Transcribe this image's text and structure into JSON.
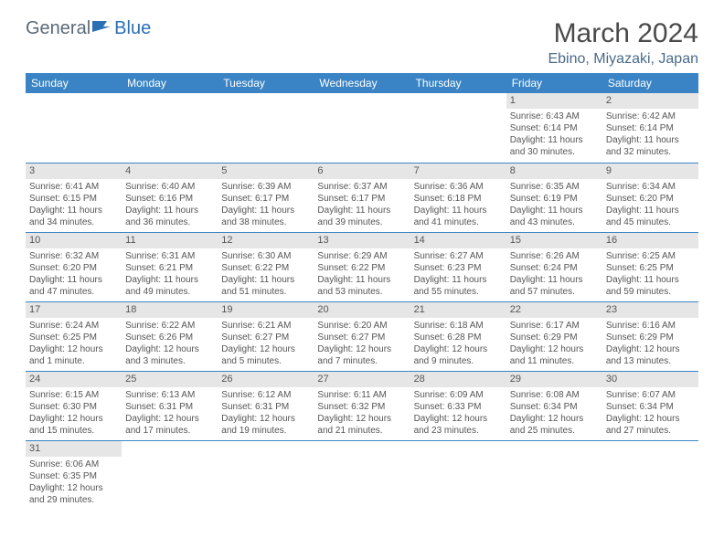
{
  "logo": {
    "part1": "General",
    "part2": "Blue"
  },
  "title": "March 2024",
  "location": "Ebino, Miyazaki, Japan",
  "colors": {
    "header_bg": "#3a84c5",
    "header_fg": "#ffffff",
    "daynum_bg": "#e6e6e6",
    "text": "#555555",
    "border": "#3a84c5",
    "logo_gray": "#5a6a78",
    "logo_blue": "#2b6fb5",
    "title_color": "#4a4a4a",
    "location_color": "#4a6a8a"
  },
  "weekdays": [
    "Sunday",
    "Monday",
    "Tuesday",
    "Wednesday",
    "Thursday",
    "Friday",
    "Saturday"
  ],
  "weeks": [
    [
      null,
      null,
      null,
      null,
      null,
      {
        "n": "1",
        "sunrise": "6:43 AM",
        "sunset": "6:14 PM",
        "daylight": "11 hours and 30 minutes."
      },
      {
        "n": "2",
        "sunrise": "6:42 AM",
        "sunset": "6:14 PM",
        "daylight": "11 hours and 32 minutes."
      }
    ],
    [
      {
        "n": "3",
        "sunrise": "6:41 AM",
        "sunset": "6:15 PM",
        "daylight": "11 hours and 34 minutes."
      },
      {
        "n": "4",
        "sunrise": "6:40 AM",
        "sunset": "6:16 PM",
        "daylight": "11 hours and 36 minutes."
      },
      {
        "n": "5",
        "sunrise": "6:39 AM",
        "sunset": "6:17 PM",
        "daylight": "11 hours and 38 minutes."
      },
      {
        "n": "6",
        "sunrise": "6:37 AM",
        "sunset": "6:17 PM",
        "daylight": "11 hours and 39 minutes."
      },
      {
        "n": "7",
        "sunrise": "6:36 AM",
        "sunset": "6:18 PM",
        "daylight": "11 hours and 41 minutes."
      },
      {
        "n": "8",
        "sunrise": "6:35 AM",
        "sunset": "6:19 PM",
        "daylight": "11 hours and 43 minutes."
      },
      {
        "n": "9",
        "sunrise": "6:34 AM",
        "sunset": "6:20 PM",
        "daylight": "11 hours and 45 minutes."
      }
    ],
    [
      {
        "n": "10",
        "sunrise": "6:32 AM",
        "sunset": "6:20 PM",
        "daylight": "11 hours and 47 minutes."
      },
      {
        "n": "11",
        "sunrise": "6:31 AM",
        "sunset": "6:21 PM",
        "daylight": "11 hours and 49 minutes."
      },
      {
        "n": "12",
        "sunrise": "6:30 AM",
        "sunset": "6:22 PM",
        "daylight": "11 hours and 51 minutes."
      },
      {
        "n": "13",
        "sunrise": "6:29 AM",
        "sunset": "6:22 PM",
        "daylight": "11 hours and 53 minutes."
      },
      {
        "n": "14",
        "sunrise": "6:27 AM",
        "sunset": "6:23 PM",
        "daylight": "11 hours and 55 minutes."
      },
      {
        "n": "15",
        "sunrise": "6:26 AM",
        "sunset": "6:24 PM",
        "daylight": "11 hours and 57 minutes."
      },
      {
        "n": "16",
        "sunrise": "6:25 AM",
        "sunset": "6:25 PM",
        "daylight": "11 hours and 59 minutes."
      }
    ],
    [
      {
        "n": "17",
        "sunrise": "6:24 AM",
        "sunset": "6:25 PM",
        "daylight": "12 hours and 1 minute."
      },
      {
        "n": "18",
        "sunrise": "6:22 AM",
        "sunset": "6:26 PM",
        "daylight": "12 hours and 3 minutes."
      },
      {
        "n": "19",
        "sunrise": "6:21 AM",
        "sunset": "6:27 PM",
        "daylight": "12 hours and 5 minutes."
      },
      {
        "n": "20",
        "sunrise": "6:20 AM",
        "sunset": "6:27 PM",
        "daylight": "12 hours and 7 minutes."
      },
      {
        "n": "21",
        "sunrise": "6:18 AM",
        "sunset": "6:28 PM",
        "daylight": "12 hours and 9 minutes."
      },
      {
        "n": "22",
        "sunrise": "6:17 AM",
        "sunset": "6:29 PM",
        "daylight": "12 hours and 11 minutes."
      },
      {
        "n": "23",
        "sunrise": "6:16 AM",
        "sunset": "6:29 PM",
        "daylight": "12 hours and 13 minutes."
      }
    ],
    [
      {
        "n": "24",
        "sunrise": "6:15 AM",
        "sunset": "6:30 PM",
        "daylight": "12 hours and 15 minutes."
      },
      {
        "n": "25",
        "sunrise": "6:13 AM",
        "sunset": "6:31 PM",
        "daylight": "12 hours and 17 minutes."
      },
      {
        "n": "26",
        "sunrise": "6:12 AM",
        "sunset": "6:31 PM",
        "daylight": "12 hours and 19 minutes."
      },
      {
        "n": "27",
        "sunrise": "6:11 AM",
        "sunset": "6:32 PM",
        "daylight": "12 hours and 21 minutes."
      },
      {
        "n": "28",
        "sunrise": "6:09 AM",
        "sunset": "6:33 PM",
        "daylight": "12 hours and 23 minutes."
      },
      {
        "n": "29",
        "sunrise": "6:08 AM",
        "sunset": "6:34 PM",
        "daylight": "12 hours and 25 minutes."
      },
      {
        "n": "30",
        "sunrise": "6:07 AM",
        "sunset": "6:34 PM",
        "daylight": "12 hours and 27 minutes."
      }
    ],
    [
      {
        "n": "31",
        "sunrise": "6:06 AM",
        "sunset": "6:35 PM",
        "daylight": "12 hours and 29 minutes."
      },
      null,
      null,
      null,
      null,
      null,
      null
    ]
  ],
  "labels": {
    "sunrise": "Sunrise:",
    "sunset": "Sunset:",
    "daylight": "Daylight:"
  }
}
